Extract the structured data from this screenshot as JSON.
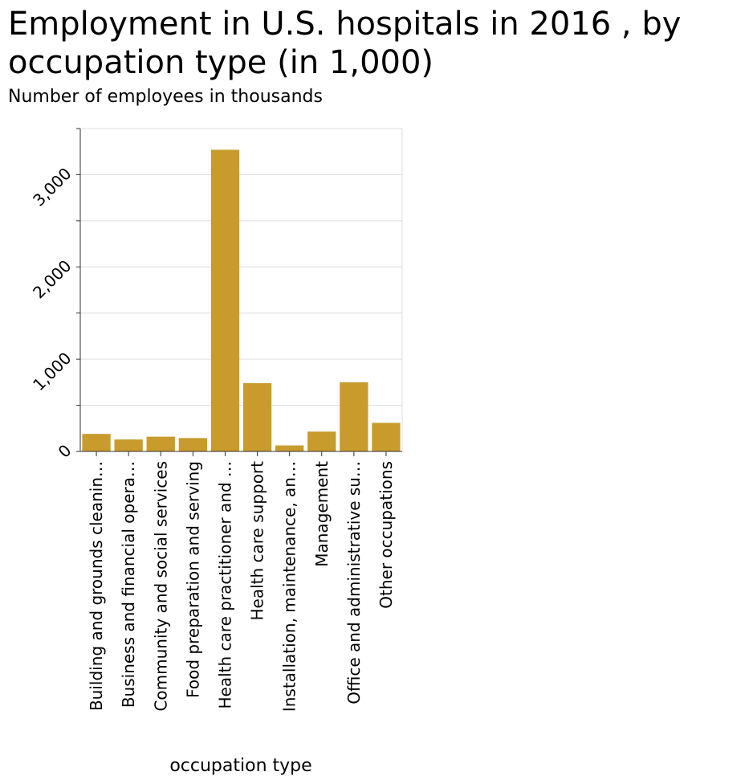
{
  "chart_data": {
    "type": "bar",
    "title": "Employment in U.S. hospitals in 2016 , by occupation type (in 1,000)",
    "ylabel": "Number of employees in thousands",
    "xlabel": "occupation type",
    "categories": [
      "Building and grounds cleanin…",
      "Business and financial opera…",
      "Community and social services",
      "Food preparation and serving",
      "Health care practitioner and …",
      "Health care support",
      "Installation, maintenance, an…",
      "Management",
      "Office and administrative su…",
      "Other occupations"
    ],
    "values": [
      190,
      130,
      160,
      145,
      3270,
      740,
      65,
      215,
      750,
      310
    ],
    "ylim": [
      0,
      3500
    ],
    "yticks": [
      0,
      1000,
      2000,
      3000
    ],
    "ytick_labels": [
      "0",
      "1,000",
      "2,000",
      "3,000"
    ],
    "grid": true,
    "bar_color": "#c89b2c",
    "grid_color": "#dddddd"
  }
}
